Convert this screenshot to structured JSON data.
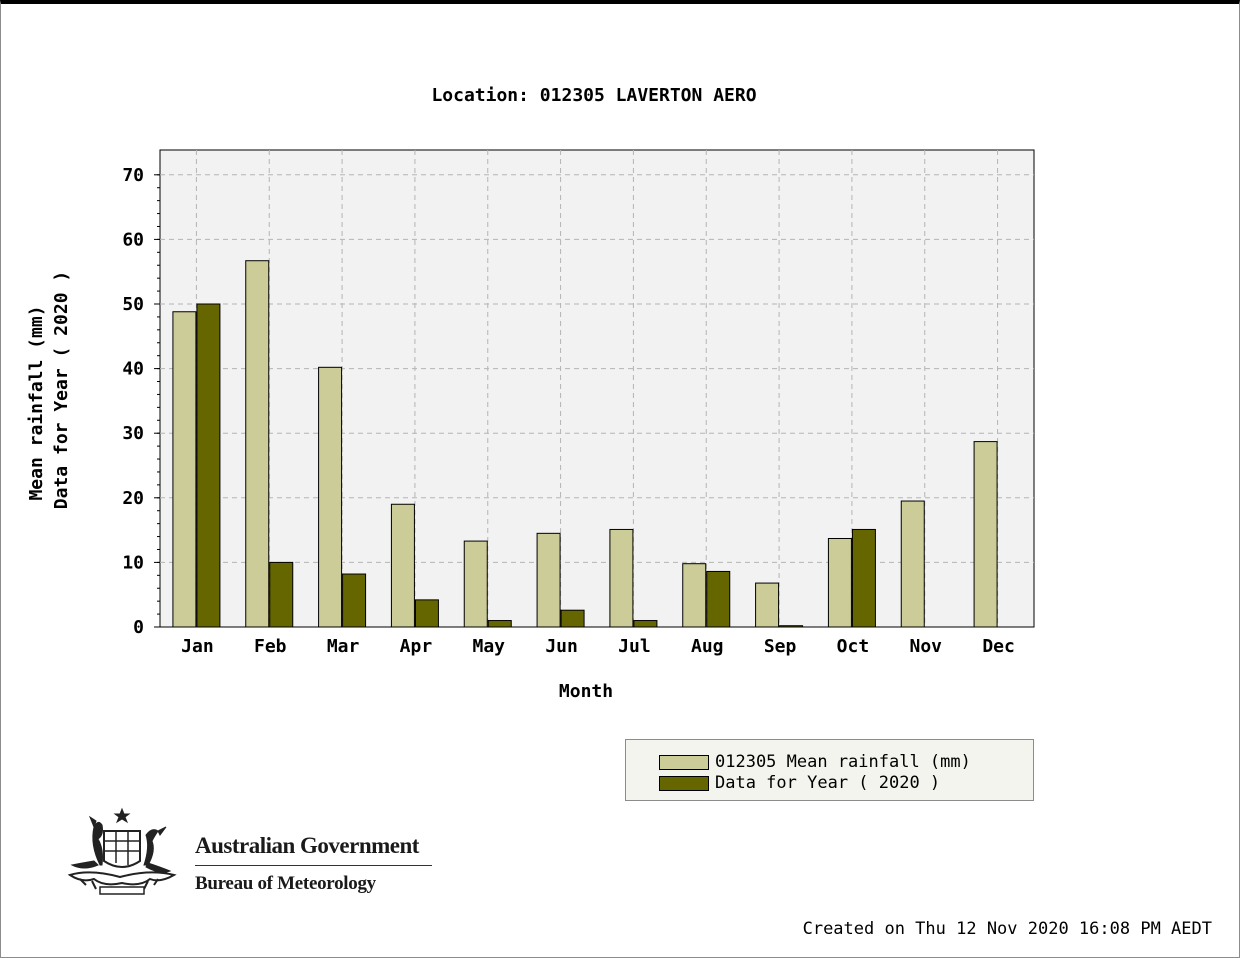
{
  "chart_data": {
    "type": "bar",
    "title": "Location: 012305 LAVERTON AERO",
    "xlabel": "Month",
    "ylabel": "Mean rainfall (mm)",
    "ylabel2": "Data for Year ( 2020 )",
    "ylim": [
      0,
      70
    ],
    "yticks": [
      0,
      10,
      20,
      30,
      40,
      50,
      60,
      70
    ],
    "grid": true,
    "legend_position": "bottom-right",
    "categories": [
      "Jan",
      "Feb",
      "Mar",
      "Apr",
      "May",
      "Jun",
      "Jul",
      "Aug",
      "Sep",
      "Oct",
      "Nov",
      "Dec"
    ],
    "series": [
      {
        "name": "012305 Mean rainfall (mm)",
        "color": "#cccc99",
        "values": [
          48.8,
          56.7,
          40.2,
          19.0,
          13.3,
          14.5,
          15.1,
          9.8,
          6.8,
          13.7,
          19.5,
          28.7
        ]
      },
      {
        "name": "Data for Year ( 2020 )",
        "color": "#666600",
        "values": [
          50.0,
          10.0,
          8.2,
          4.2,
          1.0,
          2.6,
          1.0,
          8.6,
          0.2,
          15.1,
          null,
          null
        ]
      }
    ]
  },
  "branding": {
    "line1": "Australian Government",
    "line2": "Bureau of Meteorology"
  },
  "footer": {
    "created": "Created on Thu 12 Nov 2020 16:08 PM AEDT"
  },
  "colors": {
    "plot_background": "#f2f2f2",
    "grid": "#b4b4b4"
  }
}
